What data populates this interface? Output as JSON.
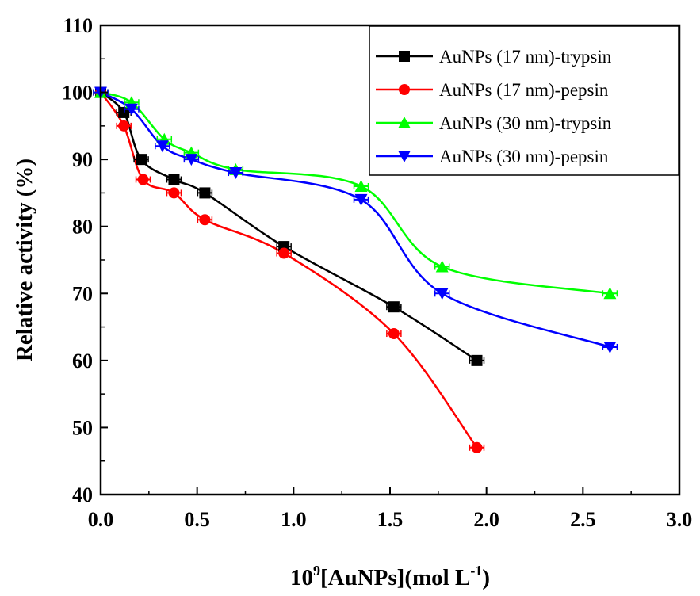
{
  "chart_data": {
    "type": "line",
    "xlabel": {
      "pre": "10",
      "sup": "9",
      "mid": "[AuNPs](mol L",
      "sup2": "-1",
      "post": ")"
    },
    "ylabel": "Relative activity (%)",
    "xlim": [
      0.0,
      3.0
    ],
    "ylim": [
      40,
      110
    ],
    "xticks": [
      "0.0",
      "0.5",
      "1.0",
      "1.5",
      "2.0",
      "2.5",
      "3.0"
    ],
    "yticks": [
      "40",
      "50",
      "60",
      "70",
      "80",
      "90",
      "100",
      "110"
    ],
    "grid": false,
    "legend_position": "top-right",
    "series": [
      {
        "name": "AuNPs (17 nm)-trypsin",
        "color": "#000000",
        "marker": "square",
        "x": [
          0.0,
          0.12,
          0.21,
          0.38,
          0.54,
          0.95,
          1.52,
          1.95
        ],
        "y": [
          100,
          97,
          90,
          87,
          85,
          77,
          68,
          60
        ]
      },
      {
        "name": "AuNPs (17 nm)-pepsin",
        "color": "#ff0000",
        "marker": "circle",
        "x": [
          0.0,
          0.12,
          0.22,
          0.38,
          0.54,
          0.95,
          1.52,
          1.95
        ],
        "y": [
          100,
          95,
          87,
          85,
          81,
          76,
          64,
          47
        ]
      },
      {
        "name": "AuNPs (30 nm)-trypsin",
        "color": "#00ff00",
        "marker": "triangle-up",
        "x": [
          0.0,
          0.16,
          0.33,
          0.47,
          0.7,
          1.35,
          1.77,
          2.64
        ],
        "y": [
          100,
          98.5,
          93,
          91,
          88.5,
          86,
          74,
          70
        ]
      },
      {
        "name": "AuNPs (30 nm)-pepsin",
        "color": "#0000ff",
        "marker": "triangle-down",
        "x": [
          0.0,
          0.16,
          0.32,
          0.47,
          0.7,
          1.35,
          1.77,
          2.64
        ],
        "y": [
          100,
          97.5,
          92,
          90,
          88,
          84,
          70,
          62
        ]
      }
    ]
  }
}
